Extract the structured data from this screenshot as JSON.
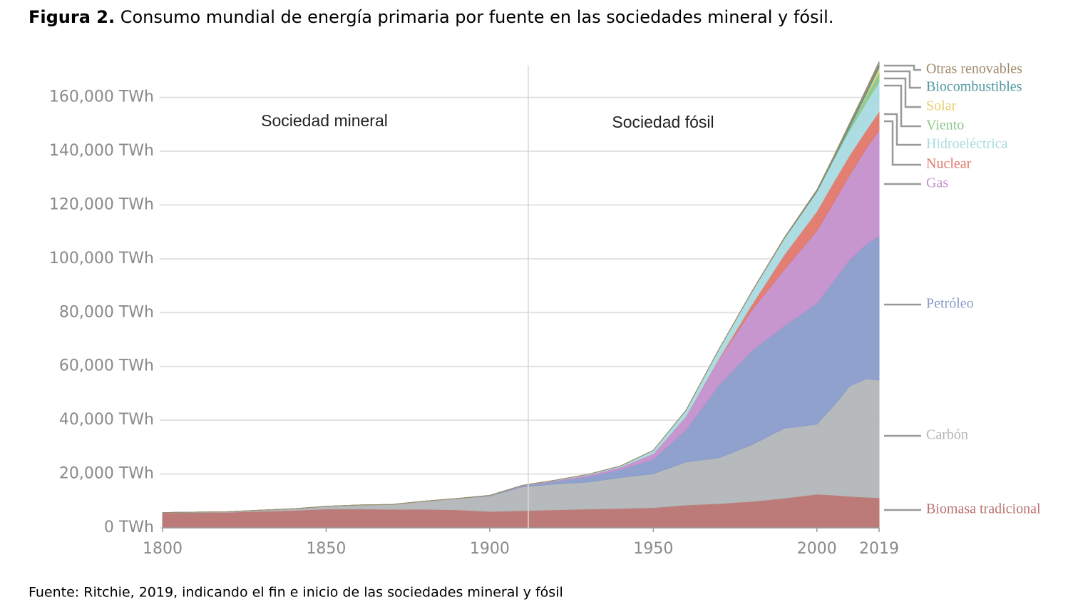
{
  "chart_data": {
    "type": "stacked_area",
    "figure_label": "Figura 2.",
    "title": "Consumo mundial de energía primaria por fuente en las sociedades mineral y fósil.",
    "source": "Fuente: Ritchie, 2019, indicando el fin e inicio de las sociedades mineral y fósil",
    "annotations": [
      "Sociedad mineral",
      "Sociedad fósil"
    ],
    "x": [
      1800,
      1820,
      1840,
      1850,
      1860,
      1870,
      1880,
      1890,
      1900,
      1910,
      1920,
      1930,
      1940,
      1950,
      1960,
      1970,
      1980,
      1990,
      2000,
      2005,
      2010,
      2015,
      2019
    ],
    "xlim": [
      1800,
      2019
    ],
    "xticks": [
      1800,
      1850,
      1900,
      1950,
      2000,
      2019
    ],
    "ylim": [
      0,
      175000
    ],
    "yticks": [
      {
        "value": 0,
        "label": "0 TWh"
      },
      {
        "value": 20000,
        "label": "20,000 TWh"
      },
      {
        "value": 40000,
        "label": "40,000 TWh"
      },
      {
        "value": 60000,
        "label": "60,000 TWh"
      },
      {
        "value": 80000,
        "label": "80,000 TWh"
      },
      {
        "value": 100000,
        "label": "100,000 TWh"
      },
      {
        "value": 120000,
        "label": "120,000 TWh"
      },
      {
        "value": 140000,
        "label": "140,000 TWh"
      },
      {
        "value": 160000,
        "label": "160,000 TWh"
      }
    ],
    "grid": true,
    "series": [
      {
        "name": "Biomasa tradicional",
        "color": "#b87472",
        "values": [
          5556,
          5800,
          6500,
          7000,
          7000,
          6900,
          6900,
          6700,
          6100,
          6400,
          6700,
          7000,
          7200,
          7500,
          8500,
          9000,
          9800,
          11000,
          12500,
          12200,
          11700,
          11400,
          11100
        ]
      },
      {
        "name": "Carbón",
        "color": "#b3b6b8",
        "values": [
          97,
          200,
          600,
          1000,
          1500,
          1800,
          3000,
          4200,
          5700,
          8800,
          9600,
          10000,
          11500,
          12600,
          16000,
          17000,
          21000,
          26000,
          26000,
          33000,
          41000,
          44000,
          43800
        ]
      },
      {
        "name": "Petróleo",
        "color": "#8a9ccb",
        "values": [
          0,
          0,
          0,
          0,
          0,
          0,
          0,
          0,
          180,
          400,
          1000,
          2000,
          3000,
          5400,
          12000,
          27000,
          35000,
          38000,
          45000,
          46500,
          47000,
          50000,
          53600
        ]
      },
      {
        "name": "Gas",
        "color": "#c490cc",
        "values": [
          0,
          0,
          0,
          0,
          0,
          0,
          0,
          0,
          60,
          150,
          250,
          600,
          900,
          2100,
          5000,
          9500,
          15000,
          21000,
          27000,
          29000,
          31500,
          35500,
          39300
        ]
      },
      {
        "name": "Nuclear",
        "color": "#e0786a",
        "values": [
          0,
          0,
          0,
          0,
          0,
          0,
          0,
          0,
          0,
          0,
          0,
          0,
          0,
          0,
          20,
          300,
          2000,
          5500,
          7200,
          7600,
          7300,
          6800,
          7000
        ]
      },
      {
        "name": "Hidroeléctrica",
        "color": "#a9dbe0",
        "values": [
          0,
          0,
          0,
          0,
          0,
          0,
          0,
          0,
          20,
          60,
          150,
          250,
          400,
          1200,
          2200,
          3500,
          4700,
          6000,
          7200,
          8200,
          9300,
          10300,
          11000
        ]
      },
      {
        "name": "Viento",
        "color": "#8cc88a",
        "values": [
          0,
          0,
          0,
          0,
          0,
          0,
          0,
          0,
          0,
          0,
          0,
          0,
          0,
          0,
          0,
          0,
          0,
          10,
          80,
          300,
          900,
          2300,
          3500
        ]
      },
      {
        "name": "Solar",
        "color": "#e8d070",
        "values": [
          0,
          0,
          0,
          0,
          0,
          0,
          0,
          0,
          0,
          0,
          0,
          0,
          0,
          0,
          0,
          0,
          0,
          1,
          3,
          10,
          80,
          700,
          1800
        ]
      },
      {
        "name": "Biocombustibles",
        "color": "#4f98a0",
        "values": [
          0,
          0,
          0,
          0,
          0,
          0,
          0,
          0,
          0,
          0,
          0,
          0,
          0,
          0,
          0,
          0,
          50,
          100,
          300,
          500,
          1000,
          1100,
          1200
        ]
      },
      {
        "name": "Otras renovables",
        "color": "#a08a6a",
        "values": [
          0,
          0,
          0,
          0,
          0,
          0,
          0,
          0,
          0,
          0,
          0,
          0,
          0,
          0,
          0,
          0,
          100,
          250,
          400,
          500,
          700,
          900,
          1000
        ]
      }
    ]
  }
}
